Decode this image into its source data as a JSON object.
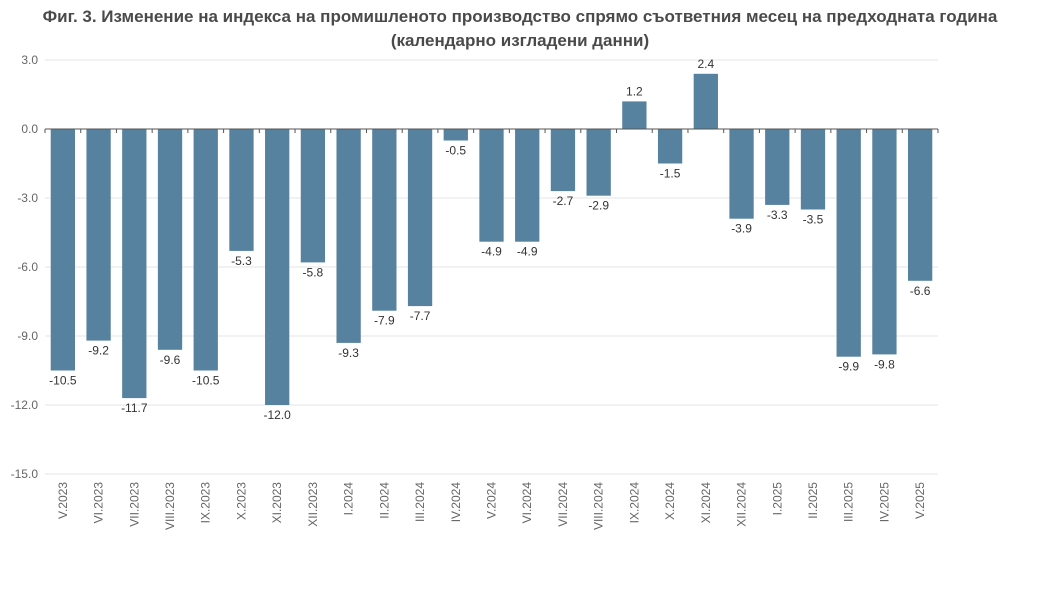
{
  "chart_data": {
    "type": "bar",
    "title": "Фиг. 3. Изменение на индекса на промишленото производство спрямо съответния месец на предходната година (календарно изгладени данни)",
    "xlabel": "",
    "ylabel": "",
    "ylim": [
      -15.0,
      3.0
    ],
    "yticks": [
      "3.0",
      "0.0",
      "-3.0",
      "-6.0",
      "-9.0",
      "-12.0",
      "-15.0"
    ],
    "grid": true,
    "bar_color": "#56819f",
    "categories": [
      "V.2023",
      "VI.2023",
      "VII.2023",
      "VIII.2023",
      "IX.2023",
      "X.2023",
      "XI.2023",
      "XII.2023",
      "I.2024",
      "II.2024",
      "III.2024",
      "IV.2024",
      "V.2024",
      "VI.2024",
      "VII.2024",
      "VIII.2024",
      "IX.2024",
      "X.2024",
      "XI.2024",
      "XII.2024",
      "I.2025",
      "II.2025",
      "III.2025",
      "IV.2025",
      "V.2025"
    ],
    "values": [
      -10.5,
      -9.2,
      -11.7,
      -9.6,
      -10.5,
      -5.3,
      -12.0,
      -5.8,
      -9.3,
      -7.9,
      -7.7,
      -0.5,
      -4.9,
      -4.9,
      -2.7,
      -2.9,
      1.2,
      -1.5,
      2.4,
      -3.9,
      -3.3,
      -3.5,
      -9.9,
      -9.8,
      -6.6
    ],
    "value_labels": [
      "-10.5",
      "-9.2",
      "-11.7",
      "-9.6",
      "-10.5",
      "-5.3",
      "-12.0",
      "-5.8",
      "-9.3",
      "-7.9",
      "-7.7",
      "-0.5",
      "-4.9",
      "-4.9",
      "-2.7",
      "-2.9",
      "1.2",
      "-1.5",
      "2.4",
      "-3.9",
      "-3.3",
      "-3.5",
      "-9.9",
      "-9.8",
      "-6.6"
    ]
  }
}
